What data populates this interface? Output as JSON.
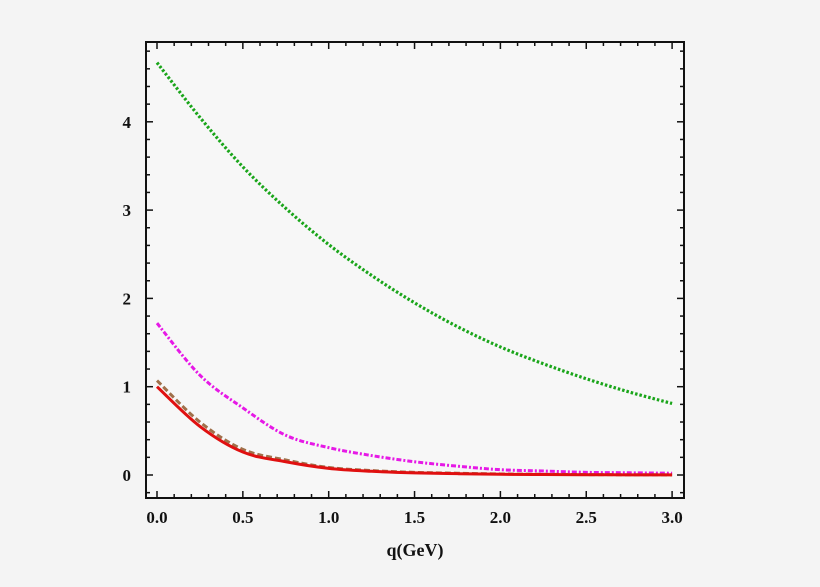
{
  "chart_data": {
    "type": "line",
    "title": "",
    "xlabel": "q(GeV)",
    "ylabel": "",
    "xlim": [
      -0.07,
      3.07
    ],
    "ylim": [
      -0.26,
      4.9
    ],
    "grid": false,
    "legend": null,
    "x_ticks": [
      "0.0",
      "0.5",
      "1.0",
      "1.5",
      "2.0",
      "2.5",
      "3.0"
    ],
    "y_ticks": [
      "0",
      "1",
      "2",
      "3",
      "4"
    ],
    "x": [
      0,
      0.25,
      0.5,
      0.75,
      1.0,
      1.25,
      1.5,
      1.75,
      2.0,
      2.25,
      2.5,
      2.75,
      3.0
    ],
    "series": [
      {
        "name": "green-dotted",
        "color": "#1aa51a",
        "style": "dotted",
        "values": [
          4.67,
          4.05,
          3.49,
          3.02,
          2.61,
          2.26,
          1.95,
          1.68,
          1.45,
          1.26,
          1.09,
          0.94,
          0.81
        ]
      },
      {
        "name": "magenta-dashdot",
        "color": "#e619e6",
        "style": "dashdot",
        "values": [
          1.72,
          1.13,
          0.76,
          0.45,
          0.31,
          0.22,
          0.15,
          0.1,
          0.06,
          0.045,
          0.03,
          0.025,
          0.02
        ]
      },
      {
        "name": "brown-dashed",
        "color": "#a0704a",
        "style": "dashed",
        "values": [
          1.07,
          0.6,
          0.29,
          0.17,
          0.085,
          0.05,
          0.03,
          0.02,
          0.012,
          0.008,
          0.005,
          0.003,
          0.002
        ]
      },
      {
        "name": "red-solid",
        "color": "#e01010",
        "style": "solid",
        "values": [
          1.0,
          0.55,
          0.26,
          0.15,
          0.075,
          0.042,
          0.024,
          0.015,
          0.008,
          0.005,
          0.003,
          0.002,
          0.001
        ]
      }
    ]
  }
}
